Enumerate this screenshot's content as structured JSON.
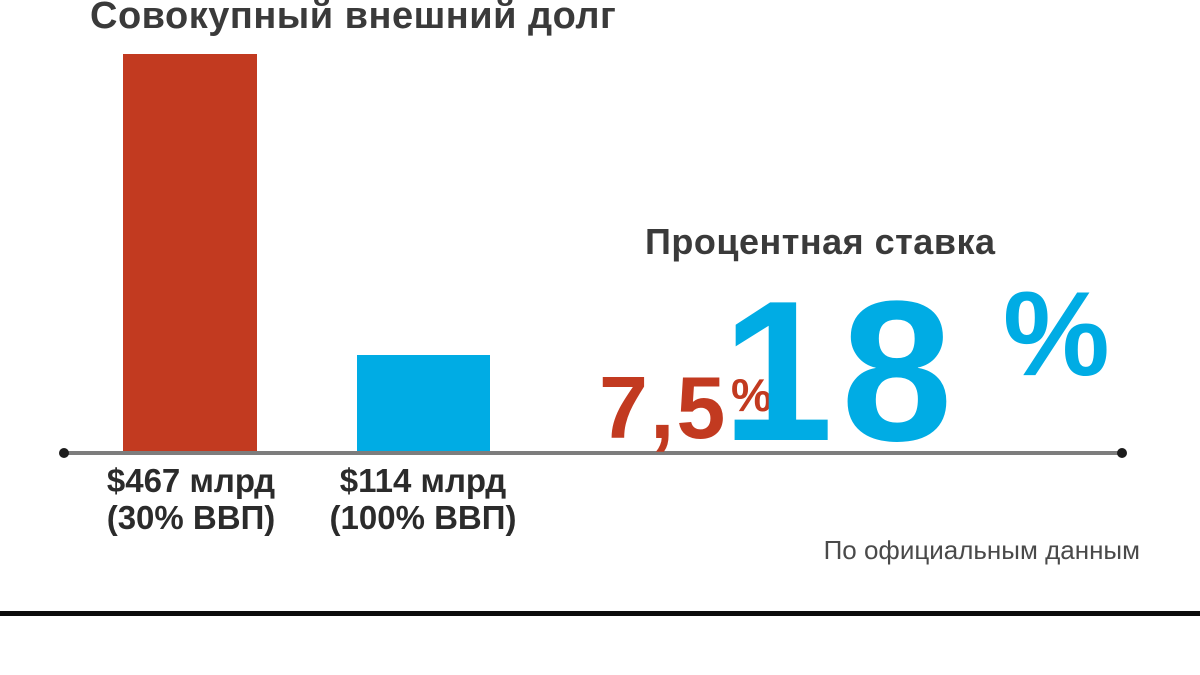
{
  "palette": {
    "red": "#c23a20",
    "blue": "#00ace4",
    "title_ink": "#3a3a3a",
    "label_ink": "#2b2b2b",
    "note_ink": "#4a4a4a",
    "axis_gray": "#7d7d7d",
    "axis_dot": "#1c1c1c",
    "separator_black": "#0c0c0c"
  },
  "debt_chart": {
    "title": "Совокупный внешний долг",
    "bars": [
      {
        "value_label": "$467 млрд",
        "share_label": "(30% ВВП)",
        "value": 467,
        "color_key": "red"
      },
      {
        "value_label": "$114 млрд",
        "share_label": "(100% ВВП)",
        "value": 114,
        "color_key": "blue"
      }
    ]
  },
  "rate_panel": {
    "title": "Процентная ставка",
    "low": {
      "value": "7,5",
      "unit": "%",
      "color_key": "red"
    },
    "high": {
      "value": "18",
      "unit": "%",
      "color_key": "blue"
    }
  },
  "source_note": "По официальным данным",
  "chart_data": [
    {
      "type": "bar",
      "title": "Совокупный внешний долг",
      "categories": [
        "$467 млрд (30% ВВП)",
        "$114 млрд (100% ВВП)"
      ],
      "values": [
        467,
        114
      ],
      "unit": "$ млрд",
      "bar_colors": [
        "#c23a20",
        "#00ace4"
      ],
      "ylim": [
        0,
        467
      ],
      "grid": false,
      "legend": "none",
      "axis_style": "single gray baseline with round endpoint dots"
    },
    {
      "type": "bar",
      "display": "big-number-callout",
      "title": "Процентная ставка",
      "categories": [
        "red-series",
        "blue-series"
      ],
      "values": [
        7.5,
        18
      ],
      "value_labels": [
        "7,5%",
        "18%"
      ],
      "unit": "%",
      "colors": [
        "#c23a20",
        "#00ace4"
      ],
      "footnote": "По официальным данным"
    }
  ]
}
